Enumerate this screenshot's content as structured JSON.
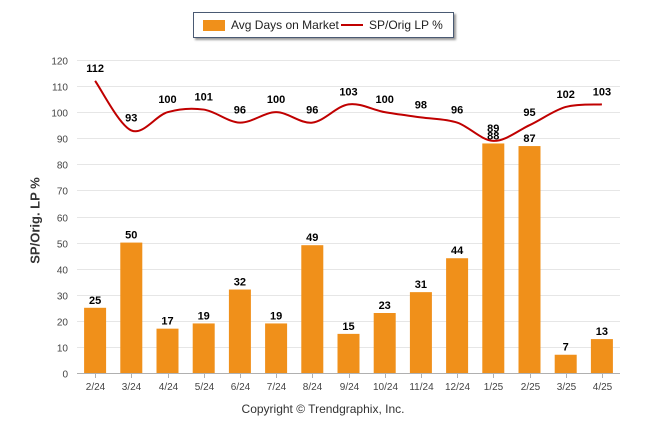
{
  "legend": {
    "bar_label": "Avg Days on Market",
    "line_label": "SP/Orig LP %"
  },
  "copyright": "Copyright © Trendgraphix, Inc.",
  "chart_data": {
    "type": "bar",
    "title": "",
    "xlabel": "",
    "ylabel": "SP/Orig. LP %",
    "ylim": [
      0,
      120
    ],
    "yticks": [
      0,
      10,
      20,
      30,
      40,
      50,
      60,
      70,
      80,
      90,
      100,
      110,
      120
    ],
    "grid": true,
    "legend_position": "top-center",
    "categories": [
      "2/24",
      "3/24",
      "4/24",
      "5/24",
      "6/24",
      "7/24",
      "8/24",
      "9/24",
      "10/24",
      "11/24",
      "12/24",
      "1/25",
      "2/25",
      "3/25",
      "4/25"
    ],
    "series": [
      {
        "name": "Avg Days on Market",
        "type": "bar",
        "color": "#f0901a",
        "values": [
          25,
          50,
          17,
          19,
          32,
          19,
          49,
          15,
          23,
          31,
          44,
          88,
          87,
          7,
          13
        ]
      },
      {
        "name": "SP/Orig LP %",
        "type": "line",
        "color": "#c00000",
        "values": [
          112,
          93,
          100,
          101,
          96,
          100,
          96,
          103,
          100,
          98,
          96,
          89,
          95,
          102,
          103
        ]
      }
    ]
  }
}
